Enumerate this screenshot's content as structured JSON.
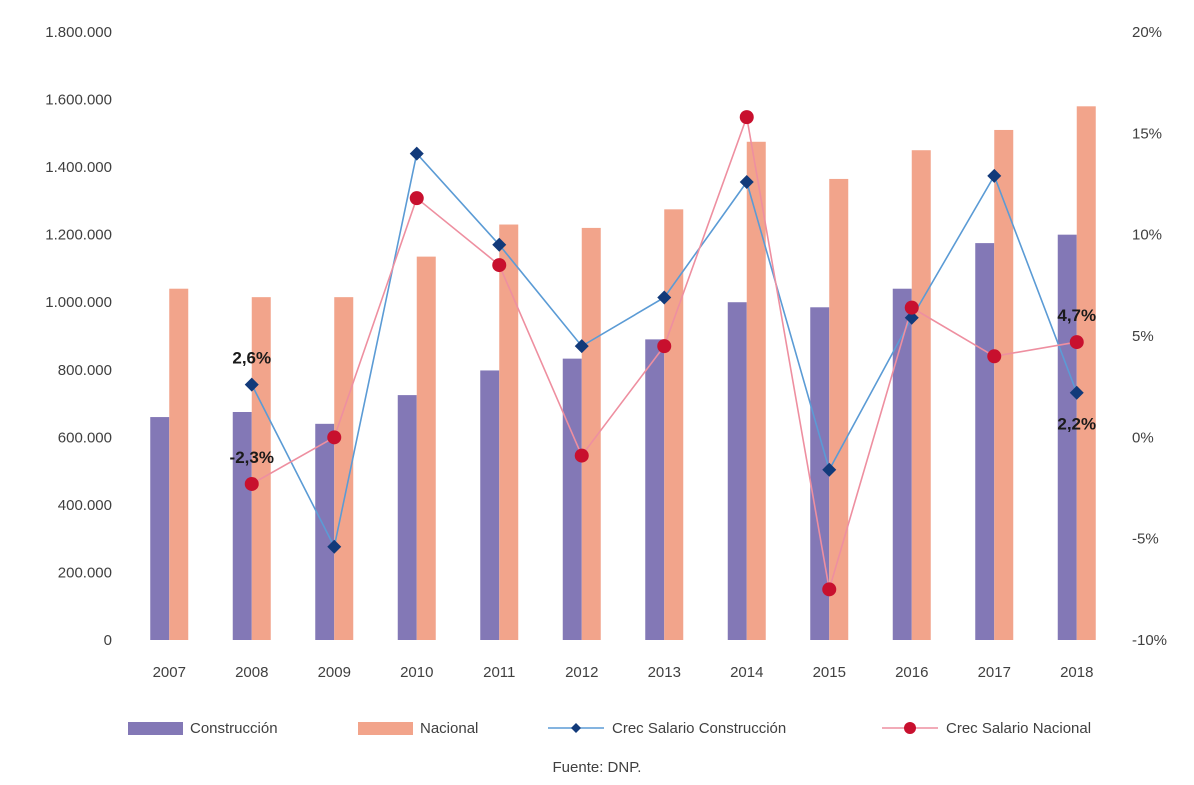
{
  "chart_data": {
    "type": "bar",
    "categories": [
      "2007",
      "2008",
      "2009",
      "2010",
      "2011",
      "2012",
      "2013",
      "2014",
      "2015",
      "2016",
      "2017",
      "2018"
    ],
    "series": [
      {
        "name": "Construcción",
        "kind": "bar",
        "axis": "left",
        "color": "#8378b6",
        "values": [
          660000,
          675000,
          640000,
          725000,
          798000,
          833000,
          890000,
          1000000,
          985000,
          1040000,
          1175000,
          1200000
        ]
      },
      {
        "name": "Nacional",
        "kind": "bar",
        "axis": "left",
        "color": "#f2a48b",
        "values": [
          1040000,
          1015000,
          1015000,
          1135000,
          1230000,
          1220000,
          1275000,
          1475000,
          1365000,
          1450000,
          1510000,
          1580000
        ]
      },
      {
        "name": "Crec Salario Construcción",
        "kind": "line",
        "axis": "right",
        "color": "#123a7a",
        "line_color": "#5b9bd5",
        "marker": "diamond",
        "values": [
          null,
          2.6,
          -5.4,
          14.0,
          9.5,
          4.5,
          6.9,
          12.6,
          -1.6,
          5.9,
          12.9,
          2.2
        ]
      },
      {
        "name": "Crec Salario Nacional",
        "kind": "line",
        "axis": "right",
        "color": "#c8102e",
        "line_color": "#ee8fa0",
        "marker": "circle",
        "values": [
          null,
          -2.3,
          0.0,
          11.8,
          8.5,
          -0.9,
          4.5,
          15.8,
          -7.5,
          6.4,
          4.0,
          4.7
        ]
      }
    ],
    "y_left": {
      "ticks": [
        "0",
        "200.000",
        "400.000",
        "600.000",
        "800.000",
        "1.000.000",
        "1.200.000",
        "1.400.000",
        "1.600.000",
        "1.800.000"
      ],
      "ylim": [
        0,
        1800000
      ]
    },
    "y_right": {
      "ticks": [
        "-10%",
        "-5%",
        "0%",
        "5%",
        "10%",
        "15%",
        "20%"
      ],
      "ylim": [
        -10,
        20
      ]
    },
    "data_labels": [
      {
        "series": 2,
        "index": 1,
        "text": "2,6%",
        "pos": "above"
      },
      {
        "series": 3,
        "index": 1,
        "text": "-2,3%",
        "pos": "above"
      },
      {
        "series": 3,
        "index": 11,
        "text": "4,7%",
        "pos": "above"
      },
      {
        "series": 2,
        "index": 11,
        "text": "2,2%",
        "pos": "below"
      }
    ],
    "legend_position": "bottom",
    "grid": false,
    "source": "Fuente: DNP."
  }
}
